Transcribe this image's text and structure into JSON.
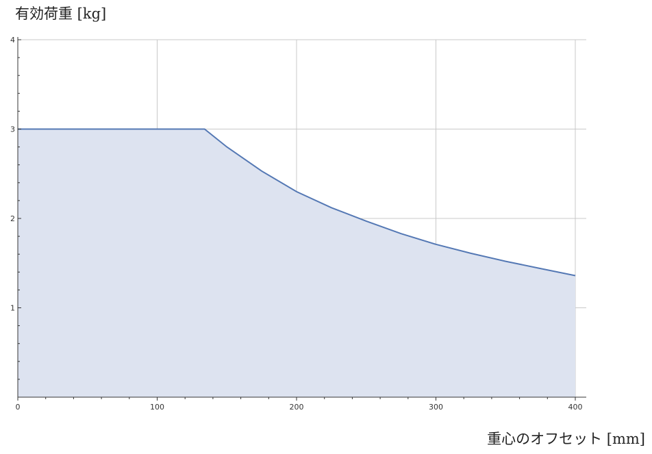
{
  "chart_data": {
    "type": "area",
    "xlabel": "重心のオフセット [mm]",
    "ylabel": "有効荷重 [kg]",
    "xlim": [
      0,
      400
    ],
    "ylim": [
      0,
      4
    ],
    "x_ticks": [
      0,
      100,
      200,
      300,
      400
    ],
    "y_ticks": [
      1,
      2,
      3,
      4
    ],
    "grid": true,
    "series": [
      {
        "x": [
          0,
          100,
          134,
          150,
          175,
          200,
          225,
          250,
          275,
          300,
          325,
          350,
          375,
          400
        ],
        "y": [
          3.0,
          3.0,
          3.0,
          2.8,
          2.53,
          2.3,
          2.12,
          1.97,
          1.83,
          1.71,
          1.61,
          1.52,
          1.44,
          1.36
        ]
      }
    ],
    "colors": {
      "line": "#5478b4",
      "fill": "#dde3f0",
      "grid": "#c8c8c8",
      "axis": "#333333"
    }
  }
}
